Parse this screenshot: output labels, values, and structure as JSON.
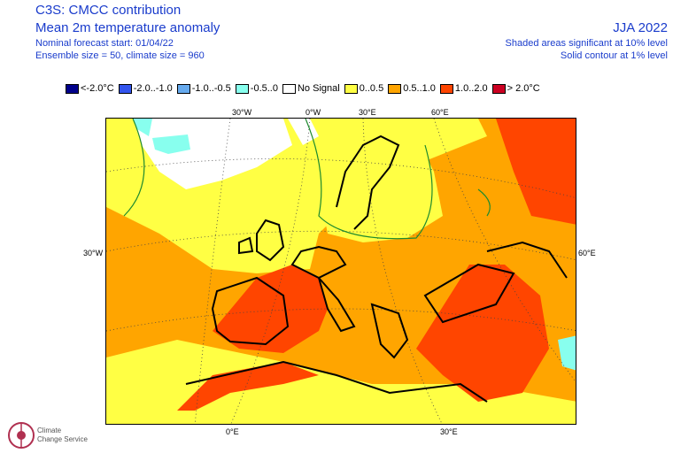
{
  "header": {
    "title": "C3S: CMCC contribution",
    "subtitle": "Mean 2m temperature anomaly",
    "forecast_start": "Nominal forecast start: 01/04/22",
    "ensemble": "Ensemble size = 50, climate size = 960",
    "season": "JJA 2022",
    "significance_shaded": "Shaded areas significant at 10% level",
    "significance_contour": "Solid contour at 1% level"
  },
  "legend": [
    {
      "label": "<-2.0°C",
      "color": "#00008b"
    },
    {
      "label": "-2.0..-1.0",
      "color": "#3355ee"
    },
    {
      "label": "-1.0..-0.5",
      "color": "#66aaee"
    },
    {
      "label": "-0.5..0",
      "color": "#88ffee"
    },
    {
      "label": "No Signal",
      "color": "#ffffff"
    },
    {
      "label": "0..0.5",
      "color": "#ffff44"
    },
    {
      "label": "0.5..1.0",
      "color": "#ffa500"
    },
    {
      "label": "1.0..2.0",
      "color": "#ff4500"
    },
    {
      "label": "> 2.0°C",
      "color": "#cc0022"
    }
  ],
  "axis_labels": {
    "top": [
      "30°W",
      "0°W",
      "30°E",
      "60°E"
    ],
    "left": [
      "30°W"
    ],
    "right": [
      "60°E"
    ],
    "bottom": [
      "0°E",
      "30°E"
    ]
  },
  "logo": {
    "text_line1": "Climate",
    "text_line2": "Change Service"
  }
}
